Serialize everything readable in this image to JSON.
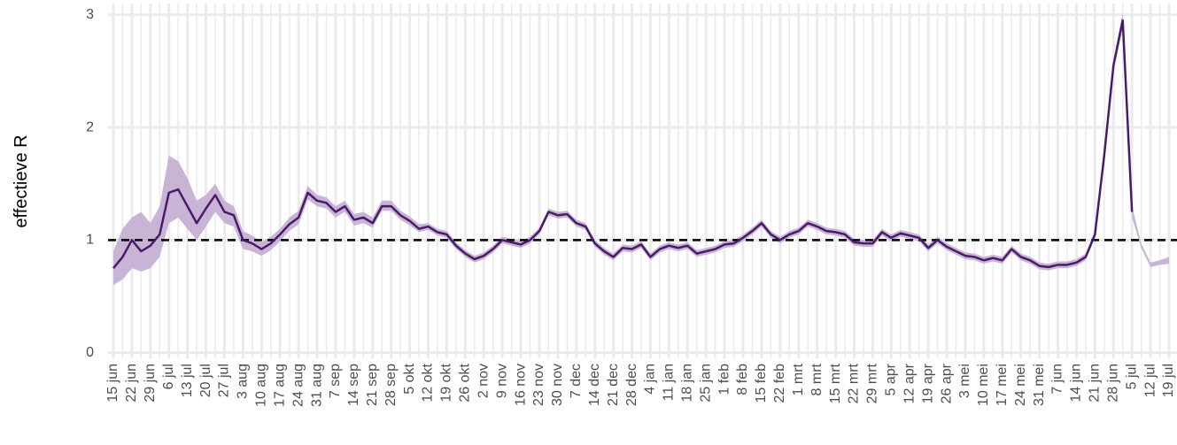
{
  "chart_data": {
    "type": "line",
    "y_label": "effectieve R",
    "categories": [
      "15 jun",
      null,
      "22 jun",
      null,
      "29 jun",
      null,
      "6 jul",
      null,
      "13 jul",
      null,
      "20 jul",
      null,
      "27 jul",
      null,
      "3 aug",
      null,
      "10 aug",
      null,
      "17 aug",
      null,
      "24 aug",
      null,
      "31 aug",
      null,
      "7 sep",
      null,
      "14 sep",
      null,
      "21 sep",
      null,
      "28 sep",
      null,
      "5 okt",
      null,
      "12 okt",
      null,
      "19 okt",
      null,
      "26 okt",
      null,
      "2 nov",
      null,
      "9 nov",
      null,
      "16 nov",
      null,
      "23 nov",
      null,
      "30 nov",
      null,
      "7 dec",
      null,
      "14 dec",
      null,
      "21 dec",
      null,
      "28 dec",
      null,
      "4 jan",
      null,
      "11 jan",
      null,
      "18 jan",
      null,
      "25 jan",
      null,
      "1 feb",
      null,
      "8 feb",
      null,
      "15 feb",
      null,
      "22 feb",
      null,
      "1 mrt",
      null,
      "8 mrt",
      null,
      "15 mrt",
      null,
      "22 mrt",
      null,
      "29 mrt",
      null,
      "5 apr",
      null,
      "12 apr",
      null,
      "19 apr",
      null,
      "26 apr",
      null,
      "3 mei",
      null,
      "10 mei",
      null,
      "17 mei",
      null,
      "24 mei",
      null,
      "31 mei",
      null,
      "7 jun",
      null,
      "14 jun",
      null,
      "21 jun",
      null,
      "28 jun",
      null,
      "5 jul",
      null,
      "12 jul",
      null,
      "19 jul"
    ],
    "values": [
      0.75,
      0.85,
      1.0,
      0.9,
      0.95,
      1.05,
      1.42,
      1.45,
      1.3,
      1.15,
      1.28,
      1.4,
      1.25,
      1.22,
      1.0,
      0.97,
      0.92,
      0.97,
      1.05,
      1.14,
      1.2,
      1.42,
      1.35,
      1.33,
      1.25,
      1.3,
      1.18,
      1.2,
      1.15,
      1.3,
      1.3,
      1.22,
      1.17,
      1.1,
      1.12,
      1.07,
      1.05,
      0.95,
      0.88,
      0.83,
      0.86,
      0.92,
      1.0,
      0.98,
      0.96,
      1.0,
      1.08,
      1.25,
      1.22,
      1.23,
      1.15,
      1.12,
      0.97,
      0.9,
      0.85,
      0.93,
      0.92,
      0.96,
      0.85,
      0.92,
      0.95,
      0.93,
      0.95,
      0.88,
      0.9,
      0.92,
      0.96,
      0.97,
      1.02,
      1.08,
      1.15,
      1.05,
      1.0,
      1.05,
      1.08,
      1.15,
      1.12,
      1.08,
      1.07,
      1.05,
      0.98,
      0.97,
      0.97,
      1.07,
      1.02,
      1.06,
      1.04,
      1.02,
      0.93,
      1.0,
      0.94,
      0.9,
      0.86,
      0.85,
      0.82,
      0.84,
      0.82,
      0.92,
      0.85,
      0.82,
      0.77,
      0.76,
      0.78,
      0.78,
      0.8,
      0.85,
      1.05,
      1.75,
      2.55,
      2.95,
      1.25,
      null,
      null,
      null,
      null
    ],
    "lower": [
      0.6,
      0.65,
      0.75,
      0.72,
      0.75,
      0.85,
      1.15,
      1.2,
      1.1,
      1.0,
      1.12,
      1.25,
      1.15,
      1.12,
      0.92,
      0.9,
      0.86,
      0.91,
      0.99,
      1.08,
      1.14,
      1.36,
      1.3,
      1.28,
      1.2,
      1.25,
      1.13,
      1.15,
      1.11,
      1.26,
      1.26,
      1.18,
      1.13,
      1.07,
      1.09,
      1.04,
      1.02,
      0.92,
      0.85,
      0.8,
      0.83,
      0.89,
      0.97,
      0.95,
      0.93,
      0.97,
      1.05,
      1.22,
      1.19,
      1.2,
      1.12,
      1.09,
      0.94,
      0.87,
      0.82,
      0.9,
      0.89,
      0.93,
      0.82,
      0.89,
      0.92,
      0.9,
      0.92,
      0.85,
      0.87,
      0.89,
      0.93,
      0.94,
      0.99,
      1.05,
      1.12,
      1.02,
      0.97,
      1.02,
      1.05,
      1.12,
      1.09,
      1.05,
      1.04,
      1.02,
      0.95,
      0.94,
      0.94,
      1.04,
      0.99,
      1.03,
      1.01,
      0.99,
      0.9,
      0.97,
      0.91,
      0.87,
      0.83,
      0.82,
      0.79,
      0.81,
      0.79,
      0.89,
      0.82,
      0.79,
      0.74,
      0.73,
      0.75,
      0.75,
      0.77,
      0.82,
      1.02,
      1.71,
      2.5,
      2.88,
      1.2,
      0.93,
      0.76,
      0.78,
      0.79
    ],
    "upper": [
      0.9,
      1.1,
      1.2,
      1.25,
      1.15,
      1.3,
      1.75,
      1.7,
      1.55,
      1.35,
      1.4,
      1.5,
      1.35,
      1.3,
      1.08,
      1.04,
      0.98,
      1.03,
      1.1,
      1.2,
      1.26,
      1.48,
      1.4,
      1.38,
      1.3,
      1.35,
      1.23,
      1.25,
      1.2,
      1.35,
      1.35,
      1.26,
      1.21,
      1.14,
      1.15,
      1.1,
      1.08,
      0.98,
      0.91,
      0.86,
      0.89,
      0.95,
      1.03,
      1.01,
      0.99,
      1.03,
      1.11,
      1.28,
      1.25,
      1.26,
      1.18,
      1.15,
      1.0,
      0.93,
      0.88,
      0.96,
      0.95,
      0.99,
      0.88,
      0.95,
      0.98,
      0.96,
      0.98,
      0.91,
      0.93,
      0.95,
      0.99,
      1.0,
      1.05,
      1.11,
      1.18,
      1.08,
      1.03,
      1.08,
      1.11,
      1.18,
      1.15,
      1.11,
      1.1,
      1.08,
      1.01,
      1.0,
      1.0,
      1.1,
      1.05,
      1.09,
      1.07,
      1.05,
      0.96,
      1.03,
      0.97,
      0.93,
      0.89,
      0.88,
      0.85,
      0.87,
      0.85,
      0.95,
      0.88,
      0.85,
      0.8,
      0.79,
      0.81,
      0.81,
      0.83,
      0.88,
      1.08,
      1.8,
      2.6,
      3.02,
      1.3,
      0.97,
      0.8,
      0.82,
      0.85
    ],
    "color": "#4a1a6b",
    "band_color": "#c8b4d4",
    "reference_line": 1,
    "ylim": [
      -0.05,
      3.1
    ],
    "yticks": [
      0,
      1,
      2,
      3
    ],
    "grid": true
  }
}
